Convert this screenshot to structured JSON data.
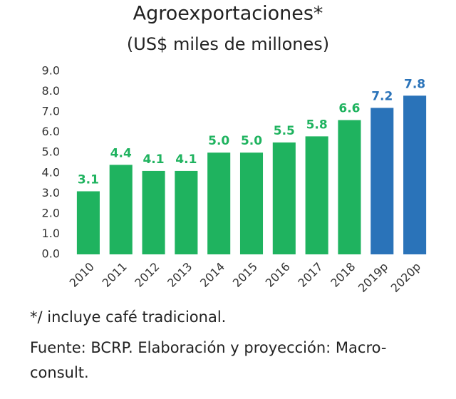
{
  "chart_data": {
    "type": "bar",
    "title": "Agroexportaciones*",
    "subtitle": "(US$ miles de millones)",
    "categories": [
      "2010",
      "2011",
      "2012",
      "2013",
      "2014",
      "2015",
      "2016",
      "2017",
      "2018",
      "2019p",
      "2020p"
    ],
    "values": [
      3.1,
      4.4,
      4.1,
      4.1,
      5.0,
      5.0,
      5.5,
      5.8,
      6.6,
      7.2,
      7.8
    ],
    "value_labels": [
      "3.1",
      "4.4",
      "4.1",
      "4.1",
      "5.0",
      "5.0",
      "5.5",
      "5.8",
      "6.6",
      "7.2",
      "7.8"
    ],
    "colors": [
      "#1fb35f",
      "#1fb35f",
      "#1fb35f",
      "#1fb35f",
      "#1fb35f",
      "#1fb35f",
      "#1fb35f",
      "#1fb35f",
      "#1fb35f",
      "#2a73b9",
      "#2a73b9"
    ],
    "ylim": [
      0,
      9
    ],
    "yticks": [
      {
        "value": 0,
        "label": "0.0"
      },
      {
        "value": 1,
        "label": "1.0"
      },
      {
        "value": 2,
        "label": "2.0"
      },
      {
        "value": 3,
        "label": "3.0"
      },
      {
        "value": 4,
        "label": "4.0"
      },
      {
        "value": 5,
        "label": "5.0"
      },
      {
        "value": 6,
        "label": "6.0"
      },
      {
        "value": 7,
        "label": "7.0"
      },
      {
        "value": 8,
        "label": "8.0"
      },
      {
        "value": 9,
        "label": "9.0"
      }
    ],
    "notes": [
      "*/ incluye café tradicional.",
      "Fuente: BCRP. Elaboración y proyección: Macro-",
      "consult."
    ]
  }
}
